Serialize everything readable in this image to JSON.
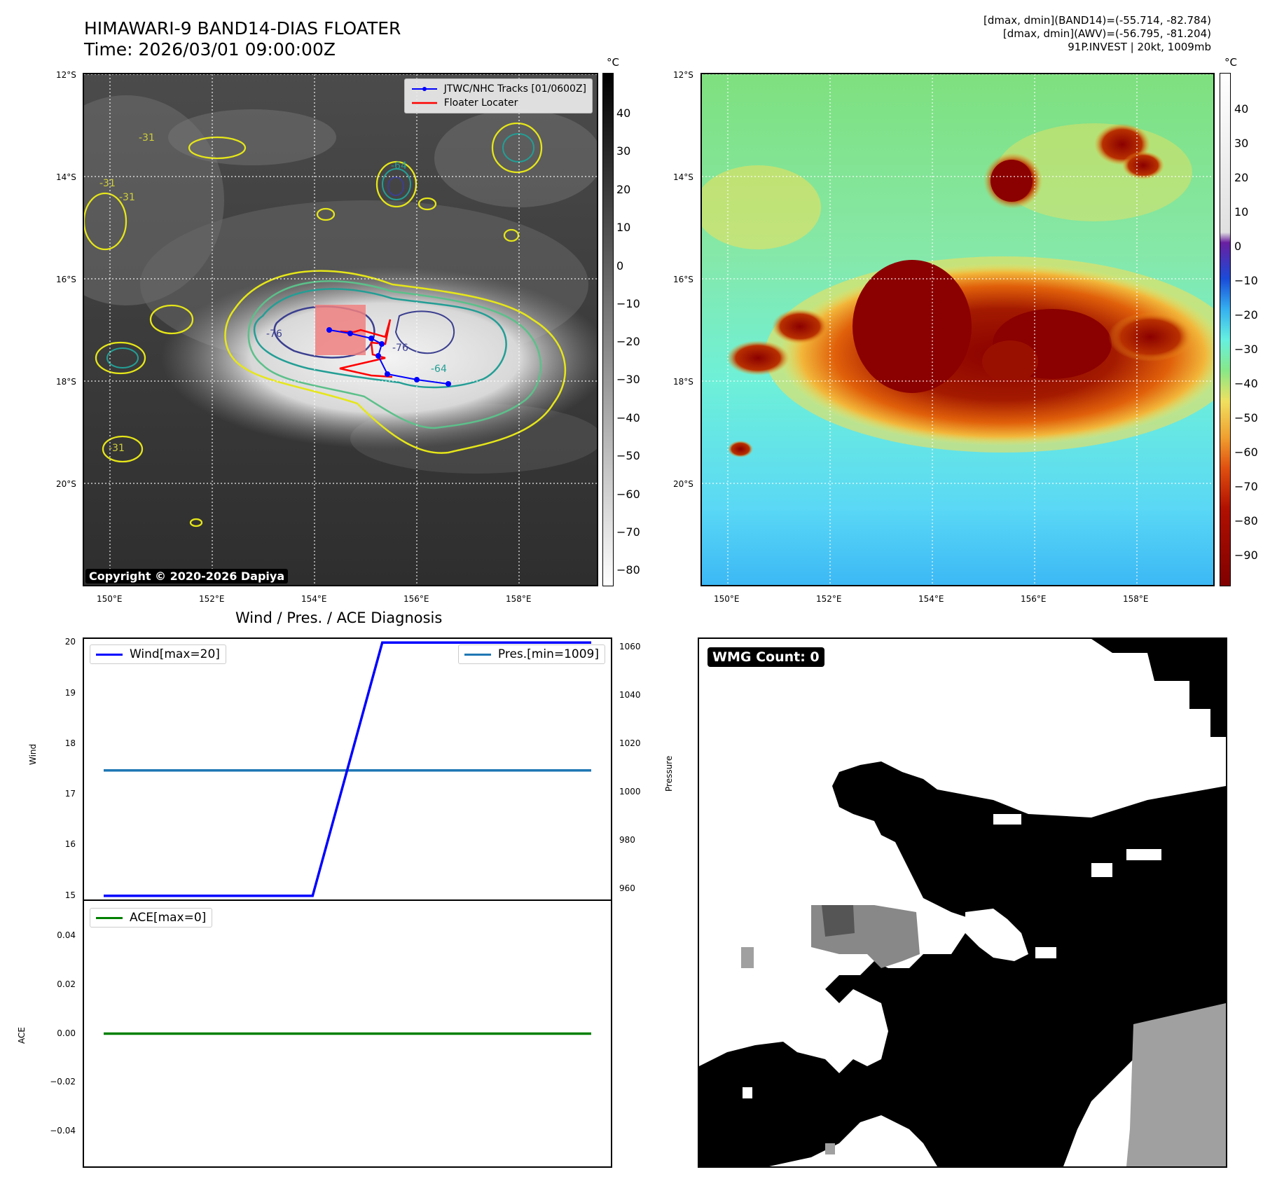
{
  "header": {
    "title_line1": "HIMAWARI-9 BAND14-DIAS FLOATER",
    "title_line2": "Time: 2026/03/01 09:00:00Z",
    "info_line1": "[dmax, dmin](BAND14)=(-55.714, -82.784)",
    "info_line2": "[dmax, dmin](AWV)=(-56.795, -81.204)",
    "info_line3": "91P.INVEST | 20kt, 1009mb"
  },
  "map": {
    "lat_labels": [
      "12°S",
      "14°S",
      "16°S",
      "18°S",
      "20°S"
    ],
    "lon_labels": [
      "150°E",
      "152°E",
      "154°E",
      "156°E",
      "158°E"
    ],
    "contour_labels": [
      "-31",
      "-31",
      "-31",
      "-31",
      "-64",
      "-76",
      "-64",
      "-76"
    ]
  },
  "ir_panel": {
    "unit": "°C",
    "colorbar_ticks": [
      "40",
      "30",
      "20",
      "10",
      "0",
      "−10",
      "−20",
      "−30",
      "−40",
      "−50",
      "−60",
      "−70",
      "−80"
    ],
    "legend": {
      "tracks": "JTWC/NHC Tracks [01/0600Z]",
      "floater": "Floater Locater"
    },
    "copyright": "Copyright © 2020-2026 Dapiya",
    "colors": {
      "track": "#0000ff",
      "floater": "#ff0000",
      "floater_box": "#f08080"
    }
  },
  "awv_panel": {
    "unit": "°C",
    "colorbar_ticks": [
      "40",
      "30",
      "20",
      "10",
      "0",
      "−10",
      "−20",
      "−30",
      "−40",
      "−50",
      "−60",
      "−70",
      "−80",
      "−90"
    ]
  },
  "diagnosis": {
    "title": "Wind / Pres. / ACE Diagnosis",
    "wind_label": "Wind",
    "pressure_label": "Pressure",
    "ace_label": "ACE",
    "legend_wind": "Wind[max=20]",
    "legend_pres": "Pres.[min=1009]",
    "legend_ace": "ACE[max=0]",
    "wind_ticks": [
      "20",
      "19",
      "18",
      "17",
      "16",
      "15"
    ],
    "pres_ticks": [
      "1060",
      "1040",
      "1020",
      "1000",
      "980",
      "960"
    ],
    "ace_ticks": [
      "0.04",
      "0.02",
      "0.00",
      "−0.02",
      "−0.04"
    ],
    "colors": {
      "wind": "#0000ff",
      "pres": "#1f77b4",
      "ace": "#008000"
    }
  },
  "wmg_panel": {
    "badge": "WMG Count: 0"
  },
  "chart_data": [
    {
      "type": "line",
      "x": [
        0,
        1,
        2,
        3,
        4,
        5,
        6,
        7
      ],
      "series": [
        {
          "name": "Wind[max=20]",
          "axis": "left",
          "values": [
            15,
            15,
            15,
            15,
            20,
            20,
            20,
            20
          ]
        },
        {
          "name": "Pres.[min=1009]",
          "axis": "right",
          "values": [
            1009,
            1009,
            1009,
            1009,
            1009,
            1009,
            1009,
            1009
          ]
        }
      ],
      "title": "Wind / Pres. / ACE Diagnosis",
      "ylabel": "Wind",
      "ylabel_right": "Pressure",
      "ylim": [
        14.9,
        20.1
      ],
      "ylim_right": [
        955,
        1064
      ],
      "legend": "upper corners",
      "grid": false
    },
    {
      "type": "line",
      "x": [
        0,
        1,
        2,
        3,
        4,
        5,
        6,
        7
      ],
      "series": [
        {
          "name": "ACE[max=0]",
          "values": [
            0,
            0,
            0,
            0,
            0,
            0,
            0,
            0
          ]
        }
      ],
      "ylabel": "ACE",
      "ylim": [
        -0.055,
        0.055
      ],
      "legend": "top-left",
      "grid": false
    }
  ]
}
